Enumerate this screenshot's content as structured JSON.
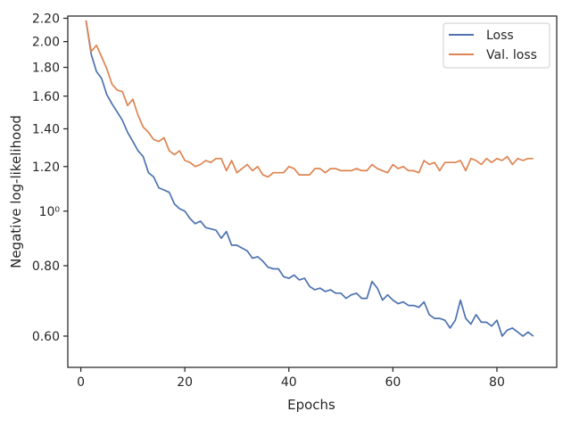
{
  "chart_data": {
    "type": "line",
    "xlabel": "Epochs",
    "ylabel": "Negative log-likelihood",
    "xlim": [
      -2.5,
      91.5
    ],
    "ylim": [
      0.528,
      2.22
    ],
    "yscale": "log",
    "x_ticks": [
      0,
      20,
      40,
      60,
      80
    ],
    "y_ticks": [
      {
        "value": 0.6,
        "label": "0.60"
      },
      {
        "value": 0.8,
        "label": "0.80"
      },
      {
        "value": 1.0,
        "label": "10⁰"
      },
      {
        "value": 1.2,
        "label": "1.20"
      },
      {
        "value": 1.4,
        "label": "1.40"
      },
      {
        "value": 1.6,
        "label": "1.60"
      },
      {
        "value": 1.8,
        "label": "1.80"
      },
      {
        "value": 2.0,
        "label": "2.00"
      },
      {
        "value": 2.2,
        "label": "2.20"
      }
    ],
    "grid": false,
    "legend_position": "top-right",
    "x": [
      1,
      2,
      3,
      4,
      5,
      6,
      7,
      8,
      9,
      10,
      11,
      12,
      13,
      14,
      15,
      16,
      17,
      18,
      19,
      20,
      21,
      22,
      23,
      24,
      25,
      26,
      27,
      28,
      29,
      30,
      31,
      32,
      33,
      34,
      35,
      36,
      37,
      38,
      39,
      40,
      41,
      42,
      43,
      44,
      45,
      46,
      47,
      48,
      49,
      50,
      51,
      52,
      53,
      54,
      55,
      56,
      57,
      58,
      59,
      60,
      61,
      62,
      63,
      64,
      65,
      66,
      67,
      68,
      69,
      70,
      71,
      72,
      73,
      74,
      75,
      76,
      77,
      78,
      79,
      80,
      81,
      82,
      83,
      84,
      85,
      86,
      87
    ],
    "series": [
      {
        "name": "Loss",
        "color": "#4c72b0",
        "values": [
          2.18,
          1.9,
          1.77,
          1.72,
          1.61,
          1.55,
          1.5,
          1.45,
          1.38,
          1.33,
          1.28,
          1.25,
          1.17,
          1.15,
          1.1,
          1.09,
          1.08,
          1.03,
          1.01,
          1.0,
          0.97,
          0.95,
          0.96,
          0.935,
          0.93,
          0.925,
          0.895,
          0.92,
          0.87,
          0.87,
          0.86,
          0.85,
          0.825,
          0.83,
          0.815,
          0.795,
          0.79,
          0.79,
          0.765,
          0.76,
          0.77,
          0.755,
          0.76,
          0.735,
          0.725,
          0.73,
          0.72,
          0.725,
          0.715,
          0.715,
          0.7,
          0.71,
          0.715,
          0.7,
          0.7,
          0.75,
          0.73,
          0.695,
          0.71,
          0.695,
          0.685,
          0.69,
          0.68,
          0.68,
          0.675,
          0.69,
          0.655,
          0.645,
          0.645,
          0.64,
          0.62,
          0.64,
          0.695,
          0.645,
          0.63,
          0.655,
          0.635,
          0.635,
          0.625,
          0.64,
          0.6,
          0.615,
          0.62,
          0.61,
          0.6,
          0.61,
          0.6
        ]
      },
      {
        "name": "Val. loss",
        "color": "#dd8452",
        "values": [
          2.18,
          1.92,
          1.97,
          1.88,
          1.79,
          1.68,
          1.64,
          1.63,
          1.54,
          1.58,
          1.48,
          1.41,
          1.38,
          1.34,
          1.33,
          1.35,
          1.28,
          1.26,
          1.28,
          1.23,
          1.22,
          1.2,
          1.21,
          1.23,
          1.22,
          1.24,
          1.24,
          1.18,
          1.23,
          1.17,
          1.19,
          1.21,
          1.18,
          1.2,
          1.16,
          1.15,
          1.17,
          1.17,
          1.17,
          1.2,
          1.19,
          1.16,
          1.16,
          1.16,
          1.19,
          1.19,
          1.17,
          1.19,
          1.19,
          1.18,
          1.18,
          1.18,
          1.19,
          1.18,
          1.18,
          1.21,
          1.19,
          1.18,
          1.17,
          1.21,
          1.19,
          1.2,
          1.18,
          1.18,
          1.17,
          1.23,
          1.21,
          1.22,
          1.18,
          1.22,
          1.22,
          1.22,
          1.23,
          1.18,
          1.24,
          1.23,
          1.21,
          1.24,
          1.22,
          1.24,
          1.23,
          1.25,
          1.21,
          1.24,
          1.23,
          1.24,
          1.24
        ]
      }
    ]
  }
}
